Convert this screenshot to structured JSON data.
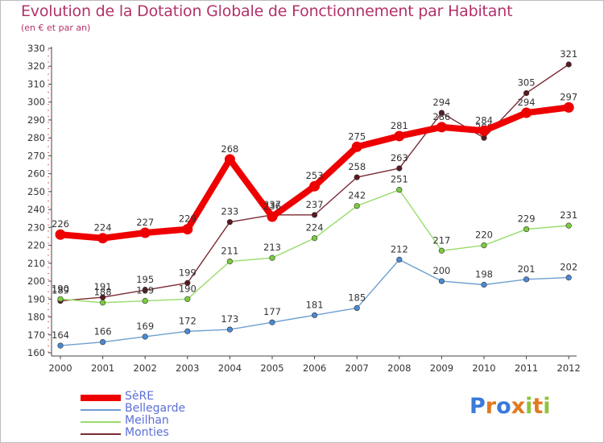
{
  "title": "Evolution de la Dotation Globale de Fonctionnement par Habitant",
  "subtitle": "(en € et par an)",
  "logo": {
    "text": "Proxiti",
    "colors": [
      "#3a7ad8",
      "#e07a22",
      "#3a7ad8",
      "#e07a22",
      "#8bc43a",
      "#e07a22",
      "#8bc43a"
    ]
  },
  "chart_data": {
    "type": "line",
    "x": [
      "2000",
      "2001",
      "2002",
      "2003",
      "2004",
      "2005",
      "2006",
      "2007",
      "2008",
      "2009",
      "2010",
      "2011",
      "2012"
    ],
    "ylim": [
      160,
      330
    ],
    "yticks": [
      160,
      170,
      180,
      190,
      200,
      210,
      220,
      230,
      240,
      250,
      260,
      270,
      280,
      290,
      300,
      310,
      320,
      330
    ],
    "grid": false,
    "legend": "bottom-left",
    "series": [
      {
        "name": "Monties",
        "color": "#7a2a33",
        "marker": "#5a1a1f",
        "values": [
          189,
          191,
          195,
          199,
          233,
          237,
          237,
          258,
          263,
          294,
          280,
          305,
          321
        ]
      },
      {
        "name": "Meilhan",
        "color": "#98dc6a",
        "marker": "#7bcc3f",
        "values": [
          190,
          188,
          189,
          190,
          211,
          213,
          224,
          242,
          251,
          217,
          220,
          229,
          231
        ]
      },
      {
        "name": "Bellegarde",
        "color": "#6f9fd0",
        "marker": "#4a8ad4",
        "values": [
          164,
          166,
          169,
          172,
          173,
          177,
          181,
          185,
          212,
          200,
          198,
          201,
          202
        ]
      },
      {
        "name": "SèRE",
        "color": "#ee0000",
        "marker": "#ee0000",
        "values": [
          226,
          224,
          227,
          229,
          268,
          236,
          253,
          275,
          281,
          286,
          284,
          294,
          297
        ]
      }
    ],
    "legend_order": [
      "SèRE",
      "Bellegarde",
      "Meilhan",
      "Monties"
    ]
  }
}
